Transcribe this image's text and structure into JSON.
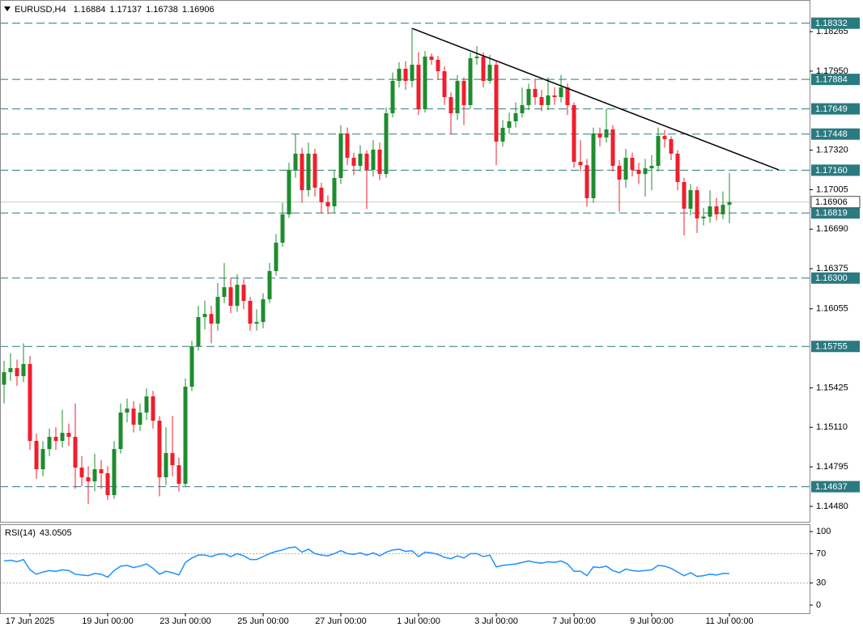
{
  "chart_data": [
    {
      "type": "candlestick",
      "title": "EURUSD,H4",
      "open": [
        1.1545,
        1.1555,
        1.15582,
        1.15518,
        1.15615,
        1.15002,
        1.14776,
        1.14937,
        1.15034,
        1.15002,
        1.15066,
        1.15034,
        1.14789,
        1.14712,
        1.14679,
        1.14776,
        1.14744,
        1.1457,
        1.14937,
        1.15228,
        1.1526,
        1.15131,
        1.15228,
        1.15357,
        1.15163,
        1.14712,
        1.14905,
        1.14808,
        1.1466,
        1.15434,
        1.15756,
        1.15989,
        1.16014,
        1.15937,
        1.1615,
        1.16227,
        1.16079,
        1.16247,
        1.16118,
        1.15937,
        1.1595,
        1.16131,
        1.16356,
        1.16582,
        1.16808,
        1.17163,
        1.17292,
        1.17001,
        1.17292,
        1.17021,
        1.16905,
        1.16872,
        1.17098,
        1.17453,
        1.17259,
        1.17195,
        1.17292,
        1.17163,
        1.17324,
        1.1713,
        1.17614,
        1.17872,
        1.17969,
        1.17872,
        1.18001,
        1.17646,
        1.18066,
        1.1804,
        1.17949,
        1.17743,
        1.17614,
        1.17872,
        1.17679,
        1.18053,
        1.18066,
        1.17872,
        1.18001,
        1.17388,
        1.17498,
        1.1755,
        1.17614,
        1.17679,
        1.17808,
        1.17743,
        1.17679,
        1.17756,
        1.17743,
        1.1782,
        1.17679,
        1.17227,
        1.172,
        1.16937,
        1.17453,
        1.17421,
        1.17485,
        1.17195,
        1.17085,
        1.17259,
        1.17163,
        1.1713,
        1.17175,
        1.17195,
        1.17433,
        1.17408,
        1.17292,
        1.17066,
        1.16853,
        1.17001,
        1.16776,
        1.1679,
        1.16872,
        1.16808,
        1.16884
      ],
      "high": [
        1.1564,
        1.157,
        1.1565,
        1.1578,
        1.1568,
        1.1506,
        1.15,
        1.151,
        1.1511,
        1.1525,
        1.1514,
        1.153,
        1.1488,
        1.148,
        1.149,
        1.1485,
        1.148,
        1.15,
        1.153,
        1.1534,
        1.1532,
        1.153,
        1.1542,
        1.154,
        1.152,
        1.1511,
        1.152,
        1.1487,
        1.155,
        1.158,
        1.1608,
        1.1612,
        1.1608,
        1.1626,
        1.1642,
        1.163,
        1.1633,
        1.1629,
        1.1615,
        1.1605,
        1.1618,
        1.1642,
        1.1665,
        1.169,
        1.1722,
        1.1745,
        1.1734,
        1.1738,
        1.1733,
        1.1706,
        1.1696,
        1.1716,
        1.1752,
        1.175,
        1.173,
        1.1736,
        1.1732,
        1.174,
        1.1738,
        1.1766,
        1.1794,
        1.1802,
        1.1803,
        1.18291,
        1.181,
        1.1811,
        1.1809,
        1.1807,
        1.1799,
        1.1778,
        1.1792,
        1.179,
        1.181,
        1.1815,
        1.181,
        1.1808,
        1.1803,
        1.1756,
        1.1762,
        1.177,
        1.1782,
        1.1785,
        1.1788,
        1.178,
        1.179,
        1.1782,
        1.1792,
        1.1785,
        1.177,
        1.174,
        1.1725,
        1.175,
        1.175,
        1.1765,
        1.1752,
        1.1724,
        1.1733,
        1.173,
        1.1722,
        1.1725,
        1.1728,
        1.175,
        1.1748,
        1.1743,
        1.1732,
        1.171,
        1.1705,
        1.1703,
        1.1686,
        1.17,
        1.1694,
        1.1699,
        1.17137
      ],
      "low": [
        1.153,
        1.1548,
        1.1544,
        1.1547,
        1.1493,
        1.147,
        1.1472,
        1.1488,
        1.1493,
        1.1495,
        1.1496,
        1.1462,
        1.1464,
        1.145,
        1.146,
        1.1462,
        1.1453,
        1.1454,
        1.149,
        1.1515,
        1.1507,
        1.1508,
        1.1517,
        1.151,
        1.1456,
        1.1465,
        1.1472,
        1.146,
        1.1464,
        1.154,
        1.1572,
        1.1589,
        1.1578,
        1.1588,
        1.161,
        1.1602,
        1.1603,
        1.1605,
        1.1588,
        1.1588,
        1.159,
        1.161,
        1.1632,
        1.1655,
        1.1678,
        1.171,
        1.169,
        1.1695,
        1.1695,
        1.1682,
        1.1681,
        1.1682,
        1.1705,
        1.172,
        1.1712,
        1.1715,
        1.1685,
        1.1711,
        1.1708,
        1.171,
        1.1758,
        1.1782,
        1.178,
        1.1782,
        1.176,
        1.1762,
        1.18,
        1.1788,
        1.1768,
        1.1745,
        1.1756,
        1.1752,
        1.1765,
        1.18,
        1.1782,
        1.1785,
        1.172,
        1.1735,
        1.1745,
        1.175,
        1.1758,
        1.1764,
        1.1768,
        1.1763,
        1.1764,
        1.1768,
        1.177,
        1.176,
        1.1718,
        1.1715,
        1.1687,
        1.169,
        1.1735,
        1.1738,
        1.1715,
        1.1683,
        1.1702,
        1.1711,
        1.1705,
        1.1695,
        1.17,
        1.1715,
        1.1734,
        1.1724,
        1.17,
        1.1664,
        1.168,
        1.1666,
        1.1672,
        1.1674,
        1.1676,
        1.1677,
        1.16738
      ],
      "close": [
        1.1555,
        1.15582,
        1.15518,
        1.15615,
        1.15002,
        1.14776,
        1.14937,
        1.15034,
        1.15002,
        1.15066,
        1.15034,
        1.14789,
        1.14712,
        1.14679,
        1.14776,
        1.14744,
        1.1457,
        1.14937,
        1.15228,
        1.1526,
        1.15131,
        1.15228,
        1.15357,
        1.15163,
        1.14712,
        1.14905,
        1.14808,
        1.1466,
        1.15434,
        1.15756,
        1.15989,
        1.16014,
        1.15937,
        1.1615,
        1.16227,
        1.16079,
        1.16247,
        1.16118,
        1.15937,
        1.1595,
        1.16131,
        1.16356,
        1.16582,
        1.16808,
        1.17163,
        1.17292,
        1.17001,
        1.17292,
        1.17021,
        1.16905,
        1.16872,
        1.17098,
        1.17453,
        1.17259,
        1.17195,
        1.17292,
        1.17163,
        1.17324,
        1.1713,
        1.17614,
        1.17872,
        1.17969,
        1.17872,
        1.18001,
        1.17646,
        1.18066,
        1.1804,
        1.17949,
        1.17743,
        1.17614,
        1.17872,
        1.17679,
        1.18053,
        1.18066,
        1.17872,
        1.18001,
        1.17388,
        1.17498,
        1.1755,
        1.17614,
        1.17679,
        1.17808,
        1.17743,
        1.17679,
        1.17756,
        1.17743,
        1.1782,
        1.17679,
        1.17227,
        1.172,
        1.16937,
        1.17453,
        1.17421,
        1.17485,
        1.17195,
        1.17085,
        1.17259,
        1.17163,
        1.1713,
        1.17175,
        1.17195,
        1.17433,
        1.17408,
        1.17292,
        1.17066,
        1.16853,
        1.17001,
        1.16776,
        1.1679,
        1.16872,
        1.16808,
        1.16884,
        1.16906
      ],
      "up_color": "#1e8c2e",
      "down_color": "#f01e2c",
      "xlim": [
        -0.625,
        124.375
      ],
      "xticks": [
        {
          "value": 4,
          "label": "17 Jun 2025"
        },
        {
          "value": 16,
          "label": "19 Jun 00:00"
        },
        {
          "value": 28,
          "label": "23 Jun 00:00"
        },
        {
          "value": 40,
          "label": "25 Jun 00:00"
        },
        {
          "value": 52,
          "label": "27 Jun 00:00"
        },
        {
          "value": 64,
          "label": "1 Jul 00:00"
        },
        {
          "value": 76,
          "label": "3 Jul 00:00"
        },
        {
          "value": 88,
          "label": "7 Jul 00:00"
        },
        {
          "value": 100,
          "label": "9 Jul 00:00"
        },
        {
          "value": 112,
          "label": "11 Jul 00:00"
        }
      ],
      "ylim": [
        1.14357,
        1.18517
      ],
      "yticks": [
        1.18265,
        {
          "value": 1.1795,
          "label": "1.17950"
        },
        {
          "value": 1.1732,
          "label": "1.17320"
        },
        1.17005,
        {
          "value": 1.1669,
          "label": "1.16690"
        },
        1.16375,
        1.16055,
        1.15425,
        {
          "value": 1.1511,
          "label": "1.15110"
        },
        1.14795,
        {
          "value": 1.1448,
          "label": "1.14480"
        }
      ],
      "levels": [
        1.18332,
        1.17884,
        1.17649,
        1.17448,
        {
          "value": 1.1716,
          "label": "1.17160"
        },
        1.16819,
        {
          "value": 1.163,
          "label": "1.16300"
        },
        1.15755,
        1.14637
      ],
      "level_color": "#2a7a80",
      "current_price": 1.16906,
      "trendline": {
        "x": [
          63,
          119.6
        ],
        "y": [
          1.18291,
          1.17163
        ]
      }
    },
    {
      "type": "line",
      "title": "RSI(14)",
      "values": [
        60,
        61,
        59,
        62,
        48,
        42,
        45,
        47,
        46,
        48,
        47,
        42,
        41,
        40,
        43,
        42,
        38,
        47,
        53,
        54,
        51,
        53,
        56,
        50,
        42,
        46,
        44,
        41,
        58,
        64,
        68,
        68,
        66,
        69,
        70,
        66,
        70,
        67,
        62,
        62,
        66,
        70,
        73,
        75,
        78,
        79,
        72,
        76,
        70,
        68,
        67,
        70,
        74,
        70,
        69,
        71,
        68,
        71,
        67,
        72,
        75,
        76,
        73,
        74,
        66,
        72,
        71,
        69,
        65,
        63,
        67,
        64,
        70,
        70,
        66,
        68,
        52,
        54,
        55,
        56,
        58,
        60,
        58,
        57,
        59,
        58,
        60,
        56,
        46,
        46,
        40,
        52,
        51,
        53,
        47,
        44,
        49,
        47,
        46,
        47,
        48,
        54,
        53,
        50,
        45,
        40,
        44,
        39,
        40,
        42,
        41,
        43,
        43.0505
      ],
      "color": "#1e90ff",
      "ylim": [
        -11,
        110
      ],
      "yticks": [
        100,
        70,
        30,
        0
      ],
      "levels": [
        70,
        30
      ]
    }
  ]
}
